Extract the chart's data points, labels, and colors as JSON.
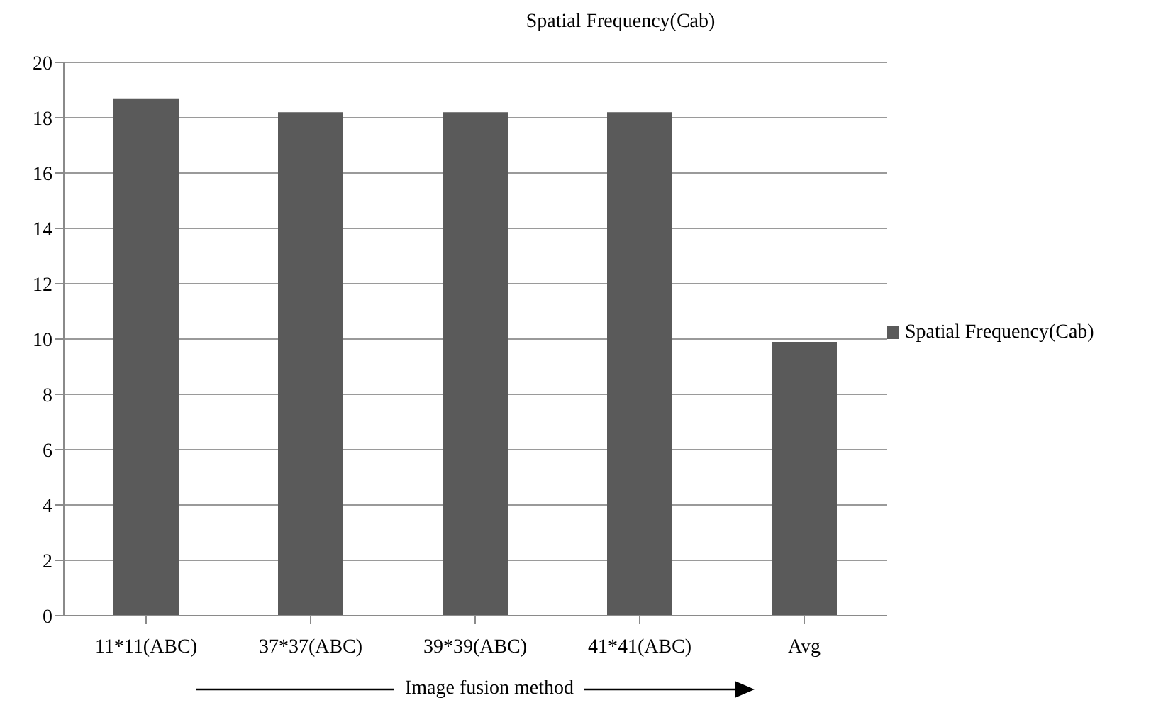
{
  "chart_data": {
    "type": "bar",
    "title": "Spatial Frequency(Cab)",
    "xlabel": "Image fusion method",
    "categories": [
      "11*11(ABC)",
      "37*37(ABC)",
      "39*39(ABC)",
      "41*41(ABC)",
      "Avg"
    ],
    "series": [
      {
        "name": "Spatial Frequency(Cab)",
        "color": "#5a5a5a",
        "values": [
          18.7,
          18.2,
          18.2,
          18.2,
          9.9
        ]
      }
    ],
    "ylim": [
      0,
      20
    ],
    "yticks": [
      0,
      2,
      4,
      6,
      8,
      10,
      12,
      14,
      16,
      18,
      20
    ],
    "grid": "y",
    "legend": "right"
  }
}
